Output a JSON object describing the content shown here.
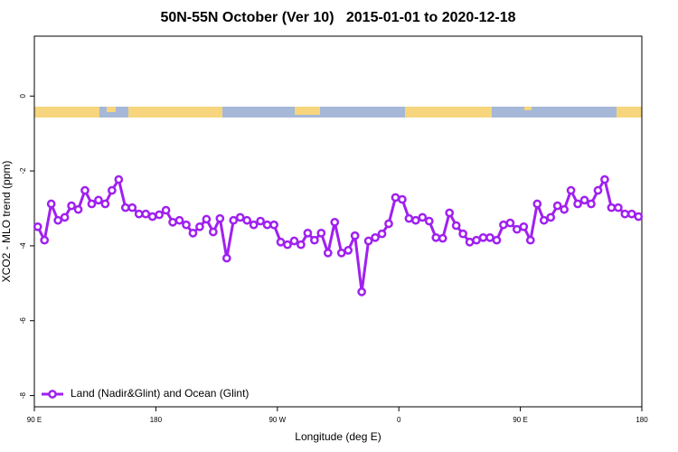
{
  "chart_data": {
    "type": "line",
    "title": "50N-55N October (Ver 10)   2015-01-01 to 2020-12-18",
    "x_label": "Longitude (deg E)",
    "y_label": "XCO2 - MLO trend (ppm)",
    "xlim": [
      90,
      540
    ],
    "ylim": [
      -8.3,
      1.6
    ],
    "xticks": [
      {
        "value": 90,
        "label": "90 E"
      },
      180,
      {
        "value": 270,
        "label": "90 W"
      },
      {
        "value": 360,
        "label": "0"
      },
      {
        "value": 450,
        "label": "90 E"
      },
      {
        "value": 540,
        "label": "180"
      }
    ],
    "yticks": [
      0,
      -2,
      -4,
      -6,
      -8
    ],
    "legend": "bottomleft",
    "x": [
      92.5,
      97.5,
      102.5,
      107.5,
      112.5,
      117.5,
      122.5,
      127.5,
      132.5,
      137.5,
      142.5,
      147.5,
      152.5,
      157.5,
      162.5,
      167.5,
      172.5,
      177.5,
      182.5,
      187.5,
      192.5,
      197.5,
      202.5,
      207.5,
      212.5,
      217.5,
      222.5,
      227.5,
      232.5,
      237.5,
      242.5,
      247.5,
      252.5,
      257.5,
      262.5,
      267.5,
      272.5,
      277.5,
      282.5,
      287.5,
      292.5,
      297.5,
      302.5,
      307.5,
      312.5,
      317.5,
      322.5,
      327.5,
      332.5,
      337.5,
      342.5,
      347.5,
      352.5,
      357.5,
      362.5,
      367.5,
      372.5,
      377.5,
      382.5,
      387.5,
      392.5,
      397.5,
      402.5,
      407.5,
      412.5,
      417.5,
      422.5,
      427.5,
      432.5,
      437.5,
      442.5,
      447.5,
      452.5,
      457.5,
      462.5,
      467.5,
      472.5,
      477.5,
      482.5,
      487.5,
      492.5,
      497.5,
      502.5,
      507.5,
      512.5,
      517.5,
      522.5,
      527.5,
      532.5,
      537.5
    ],
    "series": [
      {
        "name": "Land (Nadir&Glint) and Ocean (Glint)",
        "color": "#a020f0",
        "values": [
          -3.49,
          -3.85,
          -2.88,
          -3.32,
          -3.24,
          -2.93,
          -3.03,
          -2.52,
          -2.88,
          -2.78,
          -2.88,
          -2.52,
          -2.23,
          -2.98,
          -2.98,
          -3.15,
          -3.15,
          -3.22,
          -3.17,
          -3.05,
          -3.37,
          -3.32,
          -3.44,
          -3.66,
          -3.49,
          -3.29,
          -3.63,
          -3.27,
          -4.33,
          -3.32,
          -3.24,
          -3.32,
          -3.44,
          -3.34,
          -3.44,
          -3.44,
          -3.9,
          -3.97,
          -3.87,
          -3.97,
          -3.66,
          -3.85,
          -3.66,
          -4.19,
          -3.37,
          -4.19,
          -4.12,
          -3.73,
          -5.23,
          -3.87,
          -3.78,
          -3.68,
          -3.41,
          -2.71,
          -2.76,
          -3.27,
          -3.32,
          -3.24,
          -3.34,
          -3.78,
          -3.8,
          -3.12,
          -3.46,
          -3.68,
          -3.9,
          -3.85,
          -3.78,
          -3.78,
          -3.85,
          -3.44,
          -3.39,
          -3.56,
          -3.49,
          -3.85,
          -2.88,
          -3.32,
          -3.24,
          -2.93,
          -3.03,
          -2.52,
          -2.88,
          -2.78,
          -2.88,
          -2.52,
          -2.23,
          -2.98,
          -2.98,
          -3.15,
          -3.15,
          -3.22
        ]
      }
    ]
  }
}
